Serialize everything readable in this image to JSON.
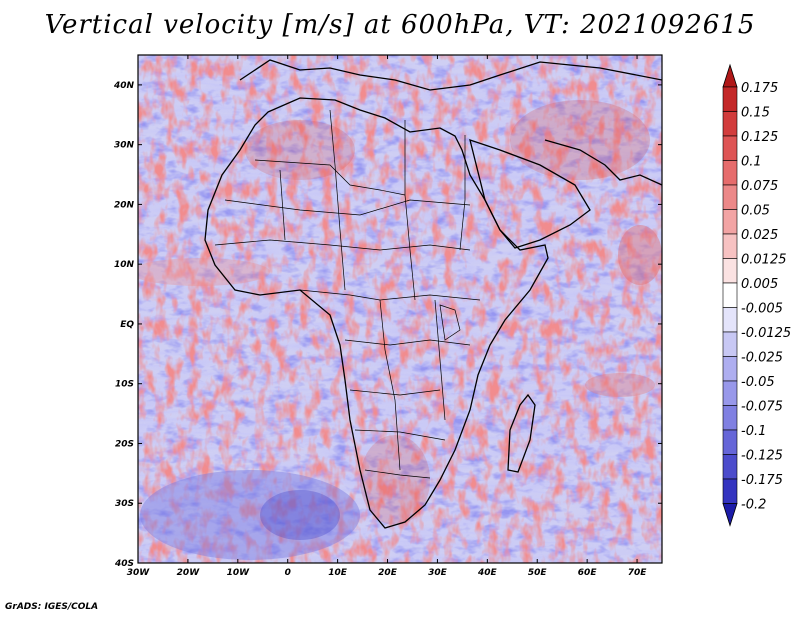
{
  "title": "Vertical velocity [m/s] at 600hPa, VT: 2021092615",
  "credit": "GrADS: IGES/COLA",
  "map": {
    "lon_range": [
      -30,
      75
    ],
    "lat_range": [
      -40,
      45
    ],
    "x_ticks": [
      "30W",
      "20W",
      "10W",
      "0",
      "10E",
      "20E",
      "30E",
      "40E",
      "50E",
      "60E",
      "70E"
    ],
    "y_ticks": [
      "40N",
      "30N",
      "20N",
      "10N",
      "EQ",
      "10S",
      "20S",
      "30S",
      "40S"
    ],
    "variable": "Vertical velocity",
    "level": "600hPa",
    "valid_time": "2021092615"
  },
  "colorbar": {
    "labels": [
      "0.175",
      "0.15",
      "0.125",
      "0.1",
      "0.075",
      "0.05",
      "0.025",
      "0.0125",
      "0.005",
      "-0.005",
      "-0.0125",
      "-0.025",
      "-0.05",
      "-0.075",
      "-0.1",
      "-0.125",
      "-0.175",
      "-0.2"
    ],
    "colors": [
      "#b01818",
      "#c42828",
      "#d23c3c",
      "#de5454",
      "#e66c6c",
      "#ec8888",
      "#f2a4a4",
      "#f7c2c2",
      "#fbe2e2",
      "#ffffff",
      "#e4e4fb",
      "#c8c8f4",
      "#aeaef0",
      "#9898ea",
      "#8080e2",
      "#6666d8",
      "#4c4ccc",
      "#3434c0",
      "#1c1ca8"
    ]
  }
}
